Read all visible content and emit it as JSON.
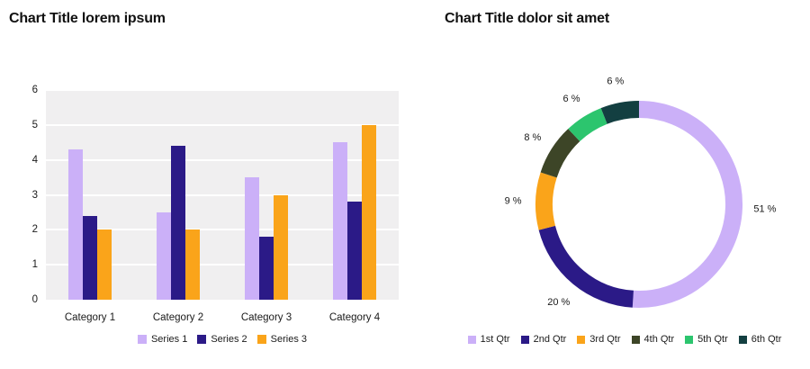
{
  "text_color": "#1a1a1a",
  "background_color": "#ffffff",
  "chart_data": [
    {
      "type": "bar",
      "title": "Chart Title lorem ipsum",
      "categories": [
        "Category 1",
        "Category 2",
        "Category 3",
        "Category 4"
      ],
      "series": [
        {
          "name": "Series 1",
          "color": "#cbb0f8",
          "values": [
            4.3,
            2.5,
            3.5,
            4.5
          ]
        },
        {
          "name": "Series 2",
          "color": "#2b1a87",
          "values": [
            2.4,
            4.4,
            1.8,
            2.8
          ]
        },
        {
          "name": "Series 3",
          "color": "#faa41a",
          "values": [
            2.0,
            2.0,
            3.0,
            5.0
          ]
        }
      ],
      "xlabel": "",
      "ylabel": "",
      "ylim": [
        0,
        6
      ],
      "ytick_step": 1,
      "yticks": [
        0,
        1,
        2,
        3,
        4,
        5,
        6
      ],
      "grid": true,
      "grid_color": "#ffffff",
      "plot_background": "#f0eff0",
      "legend_position": "bottom"
    },
    {
      "type": "pie",
      "subtype": "donut",
      "title": "Chart Title dolor sit amet",
      "labels": [
        "1st Qtr",
        "2nd Qtr",
        "3rd Qtr",
        "4th Qtr",
        "5th Qtr",
        "6th Qtr"
      ],
      "values": [
        51,
        20,
        9,
        8,
        6,
        6
      ],
      "data_labels": [
        "51 %",
        "20 %",
        "9 %",
        "8 %",
        "6 %",
        "6 %"
      ],
      "colors": [
        "#cbb0f8",
        "#2b1a87",
        "#faa41a",
        "#3d4527",
        "#2cc56e",
        "#133f41"
      ],
      "start_angle_deg": 0,
      "direction": "clockwise",
      "legend_position": "bottom"
    }
  ]
}
